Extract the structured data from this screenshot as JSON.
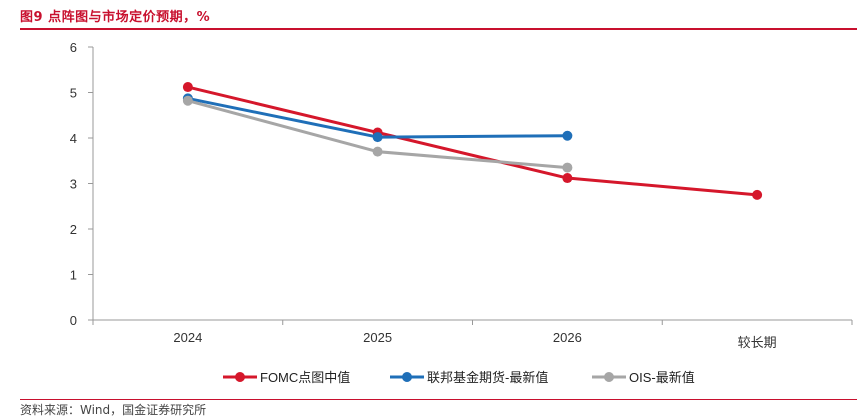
{
  "figure": {
    "title": "图9  点阵图与市场定价预期，%",
    "footer": "资料来源：Wind，国金证券研究所"
  },
  "colors": {
    "accent": "#c8102e",
    "axis": "#999999",
    "tick_label": "#333333"
  },
  "chart_data": {
    "type": "line",
    "title": "",
    "xlabel": "",
    "ylabel": "",
    "categories": [
      "2024",
      "2025",
      "2026",
      "较长期"
    ],
    "ylim": [
      0,
      6
    ],
    "yticks": [
      0,
      1,
      2,
      3,
      4,
      5,
      6
    ],
    "grid": false,
    "legend_position": "bottom",
    "series": [
      {
        "name": "FOMC点图中值",
        "color": "#d5172b",
        "values": [
          5.12,
          4.12,
          3.12,
          2.75
        ]
      },
      {
        "name": "联邦基金期货-最新值",
        "color": "#1f6fb8",
        "values": [
          4.87,
          4.02,
          4.05,
          null
        ]
      },
      {
        "name": "OIS-最新值",
        "color": "#a6a6a6",
        "values": [
          4.82,
          3.7,
          3.35,
          null
        ]
      }
    ]
  }
}
